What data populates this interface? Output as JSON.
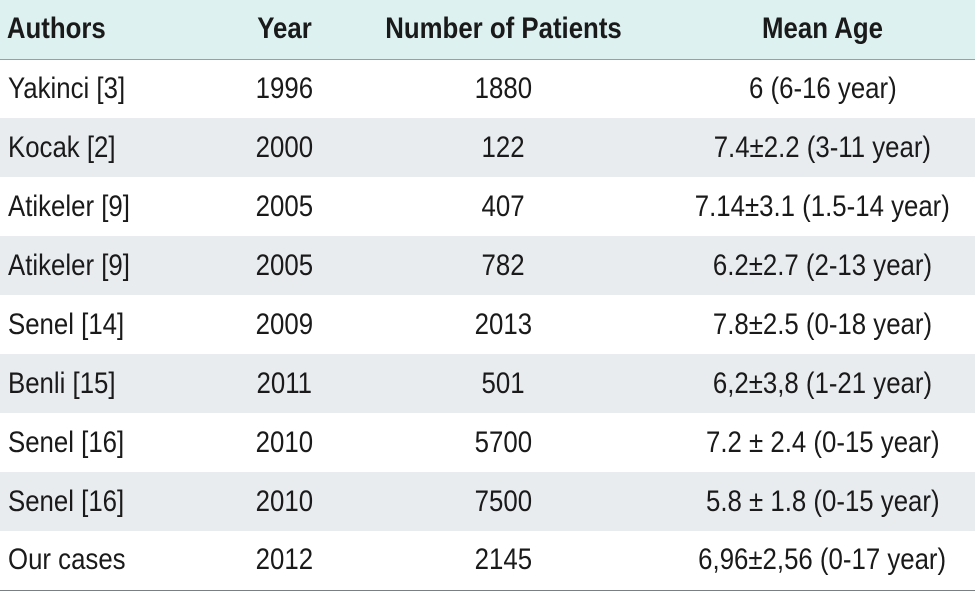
{
  "table": {
    "headers": [
      "Authors",
      "Year",
      "Number of Patients",
      "Mean Age"
    ],
    "rows": [
      [
        "Yakinci [3]",
        "1996",
        "1880",
        "6 (6-16 year)"
      ],
      [
        "Kocak [2]",
        "2000",
        "122",
        "7.4±2.2 (3-11 year)"
      ],
      [
        "Atikeler [9]",
        "2005",
        "407",
        "7.14±3.1 (1.5-14 year)"
      ],
      [
        "Atikeler [9]",
        "2005",
        "782",
        "6.2±2.7 (2-13 year)"
      ],
      [
        "Senel [14]",
        "2009",
        "2013",
        "7.8±2.5 (0-18 year)"
      ],
      [
        "Benli [15]",
        "2011",
        "501",
        "6,2±3,8 (1-21 year)"
      ],
      [
        "Senel [16]",
        "2010",
        "5700",
        "7.2 ± 2.4 (0-15 year)"
      ],
      [
        "Senel [16]",
        "2010",
        "7500",
        "5.8 ± 1.8 (0-15 year)"
      ],
      [
        "Our cases",
        "2012",
        "2145",
        "6,96±2,56 (0-17 year)"
      ]
    ]
  },
  "colors": {
    "header_bg": "#ddf1f0",
    "shaded_row_bg": "#e8ecef",
    "text": "#1a1a1a"
  }
}
